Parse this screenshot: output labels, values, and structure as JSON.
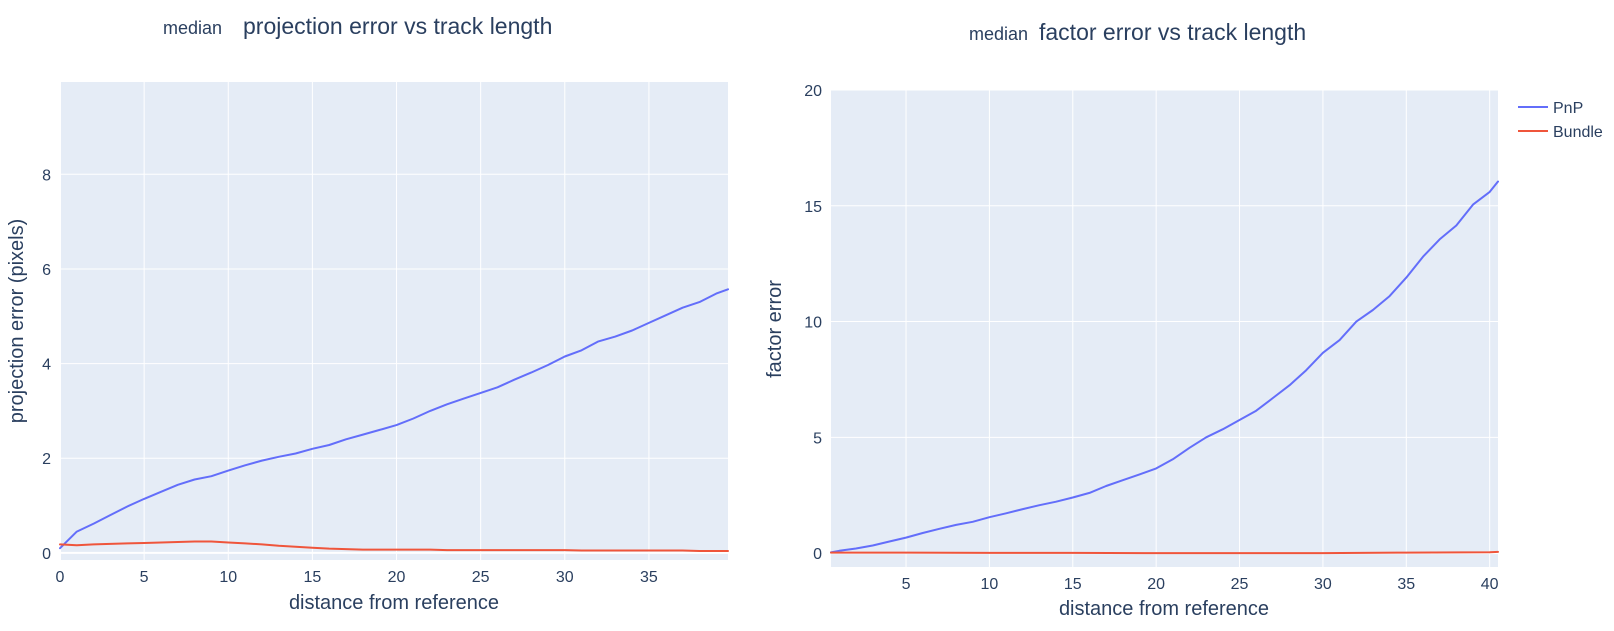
{
  "chart_data": [
    {
      "type": "line",
      "title_prefix": "median",
      "title": "projection error vs track length",
      "xlabel": "distance from reference",
      "ylabel": "projection error (pixels)",
      "xlim": [
        0,
        39.7
      ],
      "ylim": [
        -0.15,
        9.95
      ],
      "xticks": [
        0,
        5,
        10,
        15,
        20,
        25,
        30,
        35
      ],
      "yticks": [
        0,
        2,
        4,
        6,
        8
      ],
      "grid": true,
      "series": [
        {
          "name": "PnP",
          "color": "#636efa",
          "x": [
            0,
            1,
            2,
            3,
            4,
            5,
            6,
            7,
            8,
            9,
            10,
            11,
            12,
            13,
            14,
            15,
            16,
            17,
            18,
            19,
            20,
            21,
            22,
            23,
            24,
            25,
            26,
            27,
            28,
            29,
            30,
            31,
            32,
            33,
            34,
            35,
            36,
            37,
            38,
            39,
            39.7
          ],
          "y": [
            0.1,
            0.45,
            0.62,
            0.8,
            0.98,
            1.14,
            1.29,
            1.44,
            1.55,
            1.62,
            1.74,
            1.85,
            1.95,
            2.03,
            2.1,
            2.2,
            2.28,
            2.4,
            2.5,
            2.6,
            2.7,
            2.84,
            3.0,
            3.14,
            3.26,
            3.38,
            3.5,
            3.66,
            3.81,
            3.97,
            4.15,
            4.28,
            4.47,
            4.57,
            4.7,
            4.86,
            5.02,
            5.18,
            5.3,
            5.48,
            5.57
          ]
        },
        {
          "name": "Bundle",
          "color": "#ef553b",
          "x": [
            0,
            1,
            2,
            3,
            4,
            5,
            6,
            7,
            8,
            9,
            10,
            11,
            12,
            13,
            14,
            15,
            16,
            17,
            18,
            19,
            20,
            21,
            22,
            23,
            24,
            25,
            26,
            27,
            28,
            29,
            30,
            31,
            32,
            33,
            34,
            35,
            36,
            37,
            38,
            39,
            39.7
          ],
          "y": [
            0.18,
            0.16,
            0.18,
            0.19,
            0.2,
            0.21,
            0.22,
            0.23,
            0.24,
            0.24,
            0.22,
            0.2,
            0.18,
            0.15,
            0.13,
            0.11,
            0.09,
            0.08,
            0.07,
            0.07,
            0.07,
            0.07,
            0.07,
            0.06,
            0.06,
            0.06,
            0.06,
            0.06,
            0.06,
            0.06,
            0.06,
            0.05,
            0.05,
            0.05,
            0.05,
            0.05,
            0.05,
            0.05,
            0.04,
            0.04,
            0.04
          ]
        }
      ]
    },
    {
      "type": "line",
      "title_prefix": "median",
      "title": "factor error vs track length",
      "xlabel": "distance from reference",
      "ylabel": "factor error",
      "xlim": [
        0.5,
        40.5
      ],
      "ylim": [
        -0.6,
        20.0
      ],
      "xticks": [
        5,
        10,
        15,
        20,
        25,
        30,
        35,
        40
      ],
      "yticks": [
        0,
        5,
        10,
        15,
        20
      ],
      "grid": true,
      "legend": {
        "placement": "top-right",
        "entries": [
          "PnP",
          "Bundle"
        ]
      },
      "series": [
        {
          "name": "PnP",
          "color": "#636efa",
          "x": [
            0.5,
            1,
            2,
            3,
            4,
            5,
            6,
            7,
            8,
            9,
            10,
            11,
            12,
            13,
            14,
            15,
            16,
            17,
            18,
            19,
            20,
            21,
            22,
            23,
            24,
            25,
            26,
            27,
            28,
            29,
            30,
            31,
            32,
            33,
            34,
            35,
            36,
            37,
            38,
            39,
            40,
            40.5
          ],
          "y": [
            0.03,
            0.1,
            0.2,
            0.33,
            0.5,
            0.67,
            0.87,
            1.05,
            1.22,
            1.35,
            1.55,
            1.72,
            1.9,
            2.07,
            2.22,
            2.4,
            2.6,
            2.9,
            3.15,
            3.4,
            3.66,
            4.05,
            4.55,
            5.0,
            5.35,
            5.75,
            6.15,
            6.7,
            7.25,
            7.9,
            8.65,
            9.2,
            10.0,
            10.5,
            11.1,
            11.9,
            12.8,
            13.55,
            14.15,
            15.05,
            15.6,
            16.05
          ]
        },
        {
          "name": "Bundle",
          "color": "#ef553b",
          "x": [
            0.5,
            5,
            10,
            15,
            20,
            25,
            30,
            35,
            40,
            40.5
          ],
          "y": [
            0.02,
            0.02,
            0.01,
            0.01,
            0.0,
            0.0,
            0.0,
            0.02,
            0.04,
            0.05
          ]
        }
      ]
    }
  ]
}
